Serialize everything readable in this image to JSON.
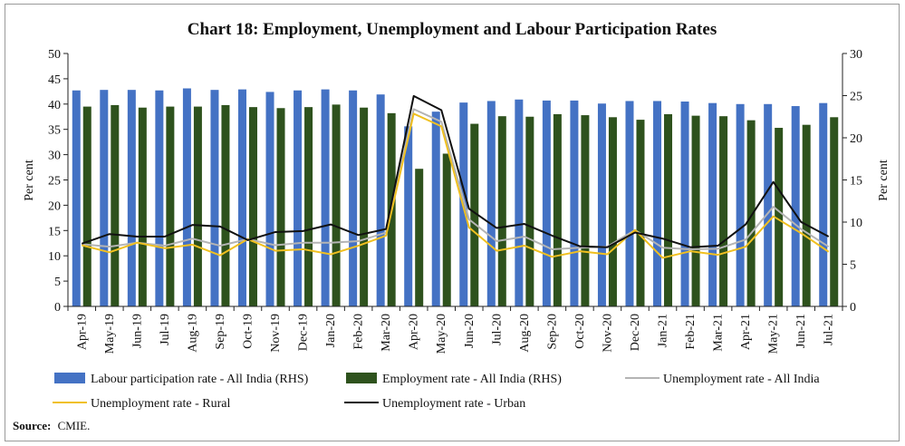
{
  "chart_data": {
    "type": "bar",
    "title": "Chart 18: Employment, Unemployment and Labour Participation Rates",
    "ylabel_left": "Per cent",
    "ylabel_right": "Per cent",
    "ylim_left": [
      0,
      50
    ],
    "ylim_right": [
      0,
      30
    ],
    "yticks_left": [
      "0",
      "5",
      "10",
      "15",
      "20",
      "25",
      "30",
      "35",
      "40",
      "45",
      "50"
    ],
    "yticks_right": [
      "0",
      "5",
      "10",
      "15",
      "20",
      "25",
      "30"
    ],
    "categories": [
      "Apr-19",
      "May-19",
      "Jun-19",
      "Jul-19",
      "Aug-19",
      "Sep-19",
      "Oct-19",
      "Nov-19",
      "Dec-19",
      "Jan-20",
      "Feb-20",
      "Mar-20",
      "Apr-20",
      "May-20",
      "Jun-20",
      "Jul-20",
      "Aug-20",
      "Sep-20",
      "Oct-20",
      "Nov-20",
      "Dec-20",
      "Jan-21",
      "Feb-21",
      "Mar-21",
      "Apr-21",
      "May-21",
      "Jun-21",
      "Jul-21"
    ],
    "series": [
      {
        "name": "Labour participation rate - All India (RHS)",
        "kind": "bar",
        "axis": "left",
        "color": "#4472c4",
        "values": [
          42.7,
          42.8,
          42.8,
          42.7,
          43.1,
          42.8,
          42.9,
          42.4,
          42.7,
          42.9,
          42.7,
          41.9,
          35.6,
          38.5,
          40.3,
          40.6,
          40.9,
          40.7,
          40.7,
          40.1,
          40.6,
          40.6,
          40.5,
          40.2,
          40.0,
          40.0,
          39.6,
          40.2
        ]
      },
      {
        "name": "Employment rate - All India (RHS)",
        "kind": "bar",
        "axis": "left",
        "color": "#2e521d",
        "values": [
          39.5,
          39.8,
          39.3,
          39.5,
          39.5,
          39.8,
          39.4,
          39.2,
          39.4,
          39.9,
          39.3,
          38.2,
          27.2,
          30.2,
          36.1,
          37.6,
          37.5,
          38.0,
          37.8,
          37.4,
          36.9,
          38.0,
          37.7,
          37.6,
          36.8,
          35.3,
          35.9,
          37.4
        ]
      },
      {
        "name": "Unemployment rate - All India",
        "kind": "line",
        "axis": "left",
        "color": "#b4b4b4",
        "values": [
          12.3,
          11.8,
          12.6,
          12.0,
          13.4,
          12.0,
          13.3,
          12.1,
          12.6,
          12.6,
          12.9,
          14.6,
          39.0,
          36.5,
          17.2,
          12.9,
          13.8,
          11.3,
          11.6,
          11.8,
          15.1,
          11.6,
          11.3,
          11.4,
          13.2,
          19.7,
          15.3,
          11.8
        ]
      },
      {
        "name": "Unemployment rate - Rural",
        "kind": "line",
        "axis": "left",
        "color": "#f0c020",
        "values": [
          12.1,
          10.7,
          12.6,
          11.5,
          12.2,
          10.1,
          13.3,
          11.0,
          11.3,
          10.3,
          12.0,
          14.0,
          38.1,
          35.6,
          15.6,
          11.0,
          12.0,
          9.8,
          10.9,
          10.3,
          15.1,
          9.6,
          10.9,
          10.2,
          11.8,
          17.8,
          14.5,
          10.8
        ]
      },
      {
        "name": "Unemployment rate - Urban",
        "kind": "line",
        "axis": "left",
        "color": "#111111",
        "values": [
          12.4,
          14.3,
          13.8,
          13.8,
          16.1,
          15.8,
          13.1,
          14.7,
          14.9,
          16.2,
          14.1,
          15.3,
          41.6,
          38.8,
          19.3,
          15.5,
          16.3,
          14.0,
          11.9,
          11.7,
          14.6,
          13.4,
          11.7,
          12.0,
          16.2,
          24.6,
          16.7,
          13.8
        ]
      }
    ],
    "legend_position": "bottom",
    "source_label": "Source:",
    "source_text": "CMIE."
  }
}
